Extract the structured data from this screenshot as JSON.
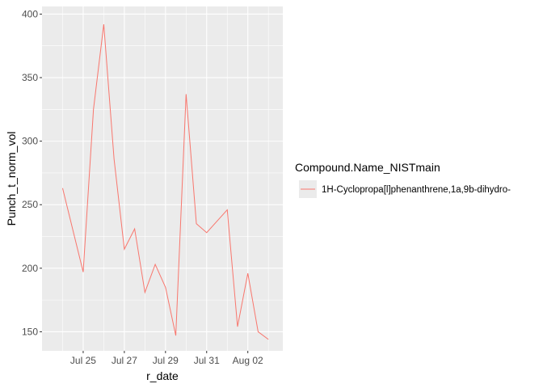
{
  "chart_data": {
    "type": "line",
    "xlabel": "r_date",
    "ylabel": "Punch_t_norm_vol",
    "x_ticks": [
      "Jul 25",
      "Jul 27",
      "Jul 29",
      "Jul 31",
      "Aug 02"
    ],
    "y_ticks": [
      150,
      200,
      250,
      300,
      350,
      400
    ],
    "xlim": [
      "2023-07-23",
      "2023-08-03"
    ],
    "ylim": [
      135,
      406
    ],
    "grid": true,
    "legend_position": "right",
    "legend_title": "Compound.Name_NISTmain",
    "series": [
      {
        "name": "1H-Cyclopropa[l]phenanthrene,1a,9b-dihydro-",
        "color": "#F8766D",
        "x": [
          "2023-07-24",
          "2023-07-25",
          "2023-07-25",
          "2023-07-26",
          "2023-07-26",
          "2023-07-27",
          "2023-07-27",
          "2023-07-28",
          "2023-07-28",
          "2023-07-29",
          "2023-07-29",
          "2023-07-30",
          "2023-07-30",
          "2023-07-31",
          "2023-08-01",
          "2023-08-01",
          "2023-08-02",
          "2023-08-02",
          "2023-08-03"
        ],
        "values": [
          263,
          197,
          325,
          392,
          286,
          215,
          231,
          181,
          203,
          185,
          147,
          337,
          235,
          228,
          246,
          154,
          196,
          150,
          144
        ]
      }
    ]
  }
}
